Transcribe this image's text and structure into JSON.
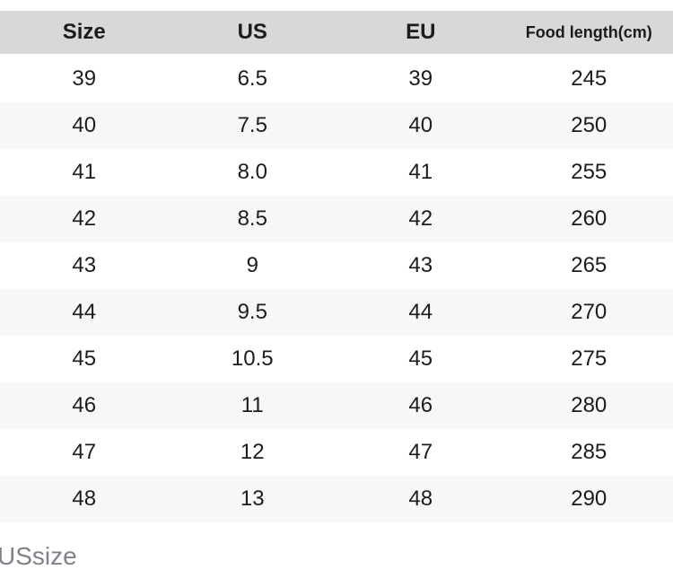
{
  "table": {
    "headers": [
      {
        "key": "size",
        "label": "Size"
      },
      {
        "key": "us",
        "label": "US"
      },
      {
        "key": "eu",
        "label": "EU"
      },
      {
        "key": "foot-length",
        "label": "Food length(cm)"
      }
    ],
    "rows": [
      [
        "39",
        "6.5",
        "39",
        "245"
      ],
      [
        "40",
        "7.5",
        "40",
        "250"
      ],
      [
        "41",
        "8.0",
        "41",
        "255"
      ],
      [
        "42",
        "8.5",
        "42",
        "260"
      ],
      [
        "43",
        "9",
        "43",
        "265"
      ],
      [
        "44",
        "9.5",
        "44",
        "270"
      ],
      [
        "45",
        "10.5",
        "45",
        "275"
      ],
      [
        "46",
        "11",
        "46",
        "280"
      ],
      [
        "47",
        "12",
        "47",
        "285"
      ],
      [
        "48",
        "13",
        "48",
        "290"
      ]
    ]
  },
  "footer": {
    "label": "USsize"
  },
  "colors": {
    "header_bg": "#d8d8d8",
    "row_alt_bg": "#f7f7f7",
    "text": "#1c1c1c",
    "footer_text": "#7f8389"
  }
}
